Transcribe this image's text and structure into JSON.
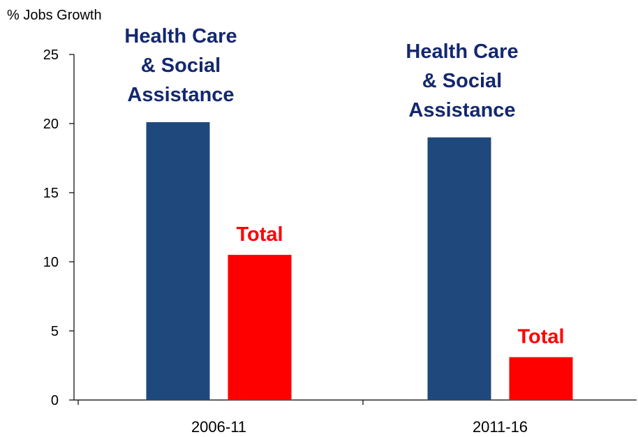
{
  "chart_data": {
    "type": "bar",
    "ylabel": "% Jobs Growth",
    "xlabel": "",
    "categories": [
      "2006-11",
      "2011-16"
    ],
    "ylim": [
      0,
      25
    ],
    "yticks": [
      0,
      5,
      10,
      15,
      20,
      25
    ],
    "grid": false,
    "series": [
      {
        "name": "Health Care & Social Assistance",
        "label_lines": [
          "Health Care",
          "& Social",
          "Assistance"
        ],
        "color": "#1f497d",
        "label_color": "#14286e",
        "values": [
          20.1,
          19.0
        ]
      },
      {
        "name": "Total",
        "label_lines": [
          "Total"
        ],
        "color": "#ff0000",
        "label_color": "#ff0000",
        "values": [
          10.5,
          3.1
        ]
      }
    ]
  }
}
